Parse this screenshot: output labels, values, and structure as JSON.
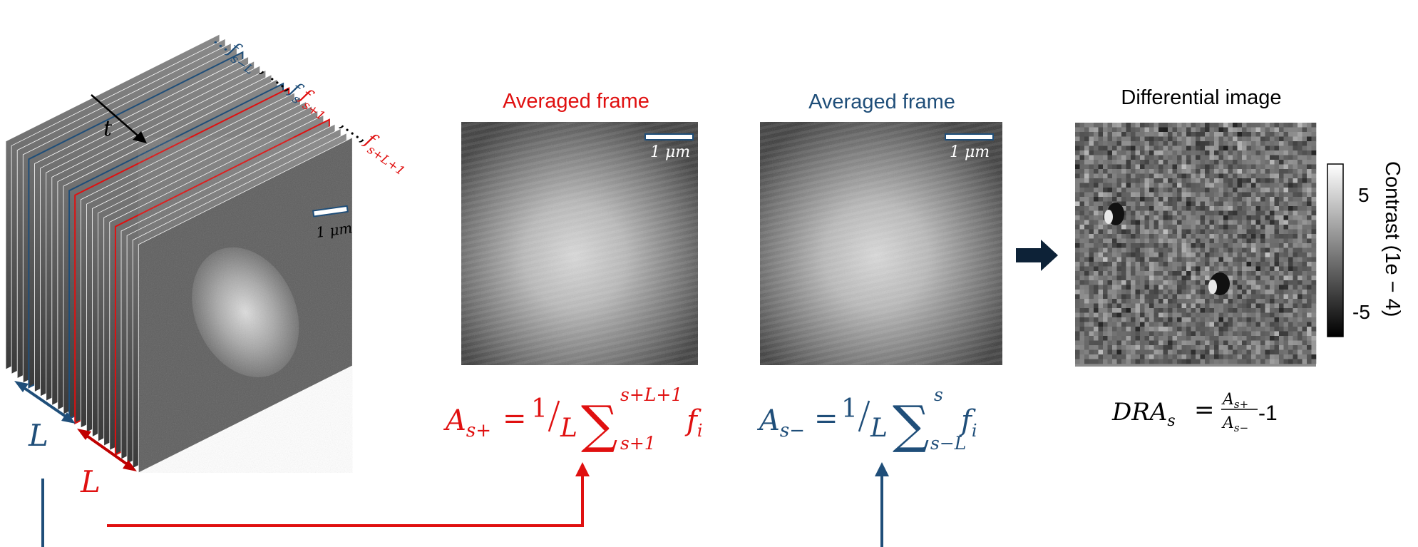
{
  "colors": {
    "red": "#e01010",
    "blue": "#1f4e79",
    "black": "#000000",
    "navy_arrow": "#0d2237"
  },
  "stack": {
    "frame_labels_blue": "…f",
    "frame_sub_sL": "s−L",
    "frame_sep": ", …,",
    "frame_s": "f",
    "frame_sub_s": "s",
    "frame_s1": "f",
    "frame_sub_s1": "s+1",
    "frame_dots": ",…,",
    "frame_sL1": "f",
    "frame_sub_sL1": "s+L+1",
    "time_label": "t",
    "scalebar_label": "1 μm",
    "L_blue": "L",
    "L_red": "L"
  },
  "panel_red": {
    "title": "Averaged frame",
    "scalebar_label": "1 μm",
    "eq_lhs": "A",
    "eq_lhs_sub": "s+",
    "eq_eq": "=",
    "eq_frac_num": "1",
    "eq_frac_den": "L",
    "eq_sum": "∑",
    "eq_sup": "s+L+1",
    "eq_sub": "s+1",
    "eq_f": "f",
    "eq_f_sub": "i"
  },
  "panel_blue": {
    "title": "Averaged frame",
    "scalebar_label": "1 μm",
    "eq_lhs": "A",
    "eq_lhs_sub": "s−",
    "eq_eq": "=",
    "eq_frac_num": "1",
    "eq_frac_den": "L",
    "eq_sum": "∑",
    "eq_sup": "s",
    "eq_sub": "s−L",
    "eq_f": "f",
    "eq_f_sub": "i"
  },
  "panel_diff": {
    "title": "Differential image",
    "eq_lhs": "DRA",
    "eq_lhs_sub": "s",
    "eq_eq": "=",
    "eq_num": "A",
    "eq_num_sub": "s+",
    "eq_den": "A",
    "eq_den_sub": "s−",
    "eq_minus_one": "-1",
    "colorbar_title": "Contrast (1e − 4)",
    "colorbar_tick_top": "5",
    "colorbar_tick_bottom": "-5"
  }
}
